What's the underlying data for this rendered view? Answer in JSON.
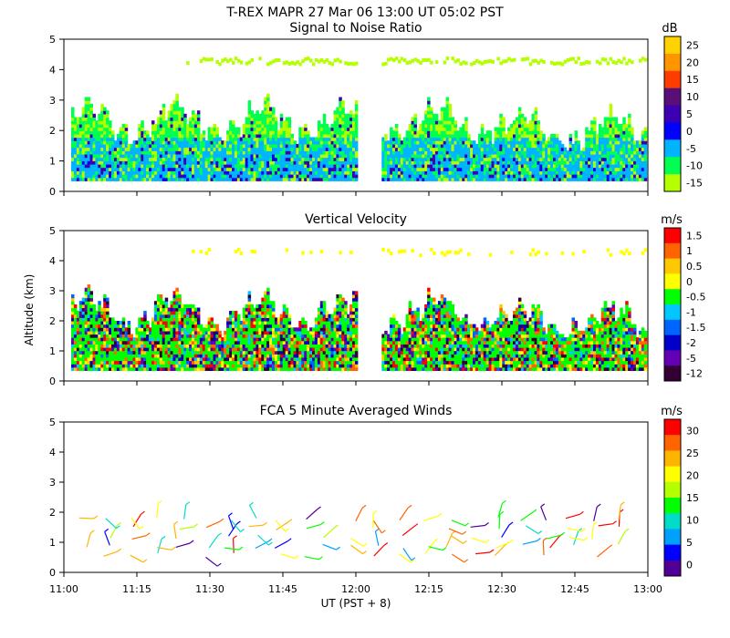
{
  "header": {
    "line": "T-REX   MAPR 27 Mar 06   13:00 UT   05:02   PST"
  },
  "x_axis": {
    "label": "UT  (PST + 8)",
    "ticks": [
      "11:00",
      "11:15",
      "11:30",
      "11:45",
      "12:00",
      "12:15",
      "12:30",
      "12:45",
      "13:00"
    ],
    "range_minutes": [
      0,
      120
    ]
  },
  "y_axis": {
    "label": "Altitude (km)",
    "ticks": [
      "0",
      "1",
      "2",
      "3",
      "4",
      "5"
    ],
    "range_km": [
      0,
      5
    ]
  },
  "chart_data": [
    {
      "type": "heatmap",
      "title": "Signal to Noise Ratio",
      "unit": "dB",
      "colorbar_ticks": [
        "25",
        "20",
        "15",
        "10",
        "5",
        "0",
        "-5",
        "-10",
        "-15"
      ],
      "colors": [
        "#ffd200",
        "#ff9600",
        "#ff3c00",
        "#5a0f78",
        "#3c00b4",
        "#0000ff",
        "#00b4ff",
        "#00ff50",
        "#b4ff00"
      ],
      "data_gap_minutes": [
        60,
        65
      ],
      "description_ranges_km": {
        "boundary_layer_top": 2.6,
        "upper_layer": [
          4.1,
          4.4
        ]
      }
    },
    {
      "type": "heatmap",
      "title": "Vertical Velocity",
      "unit": "m/s",
      "colorbar_ticks": [
        "1.5",
        "1",
        "0.5",
        "0",
        "-0.5",
        "-1",
        "-1.5",
        "-2",
        "-5",
        "-12"
      ],
      "colors": [
        "#ff0000",
        "#ff6400",
        "#ffc800",
        "#ffff00",
        "#00ff00",
        "#00c8ff",
        "#0064ff",
        "#0000c8",
        "#6400b4",
        "#320032"
      ],
      "data_gap_minutes": [
        60,
        65
      ]
    },
    {
      "type": "scatter",
      "title": "FCA 5 Minute Averaged Winds",
      "unit": "m/s",
      "colorbar_ticks": [
        "30",
        "25",
        "20",
        "15",
        "10",
        "5",
        "0"
      ],
      "colors": [
        "#ff0000",
        "#ff6400",
        "#ffb400",
        "#ffff00",
        "#b4ff00",
        "#00ff00",
        "#00dcc8",
        "#00a0ff",
        "#0000ff",
        "#500096"
      ],
      "barb_altitudes_km": [
        0.8,
        1.1,
        1.4,
        1.7,
        2.0
      ]
    }
  ]
}
